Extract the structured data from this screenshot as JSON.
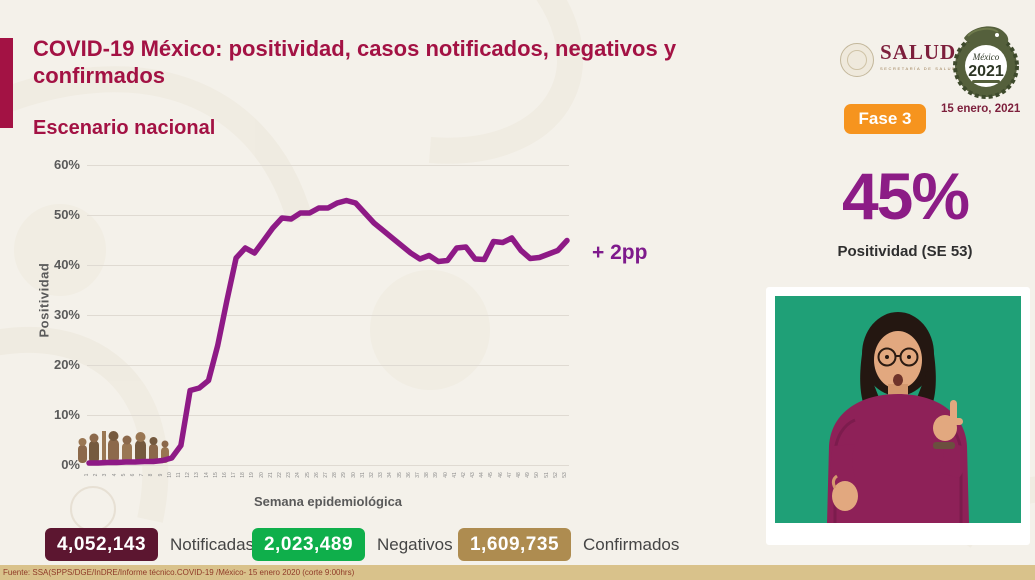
{
  "slide": {
    "title": "COVID-19 México: positividad, casos notificados, negativos y confirmados",
    "subtitle": "Escenario nacional",
    "source": "Fuente: SSA(SPPS/DGE/InDRE/Informe técnico.COVID-19 /México- 15 enero 2020 (corte 9:00hrs)"
  },
  "header": {
    "salud_name": "SALUD",
    "salud_sub": "SECRETARÍA DE SALUD",
    "logo_2021_script": "México",
    "logo_2021_year": "2021",
    "phase_badge": "Fase 3",
    "date": "15 enero, 2021"
  },
  "icons": {
    "salud_seal": "government-seal (circular emblem)",
    "logo_2021": "quetzalcoatl-snake-ring around 2021",
    "interpreter": "sign-language-interpreter video on green background"
  },
  "kpi": {
    "value": "45%",
    "label": "Positividad (SE 53)",
    "annotation": "+ 2pp"
  },
  "chart_data": {
    "type": "line",
    "title": "",
    "xlabel": "Semana epidemiológica",
    "ylabel": "Positividad",
    "ylim": [
      0,
      60
    ],
    "grid": true,
    "legend": "none",
    "line_color": "#8e1a86",
    "y_ticks": [
      "0%",
      "10%",
      "20%",
      "30%",
      "40%",
      "50%",
      "60%"
    ],
    "x": [
      1,
      2,
      3,
      4,
      5,
      6,
      7,
      8,
      9,
      10,
      11,
      12,
      13,
      14,
      15,
      16,
      17,
      18,
      19,
      20,
      21,
      22,
      23,
      24,
      25,
      26,
      27,
      28,
      29,
      30,
      31,
      32,
      33,
      34,
      35,
      36,
      37,
      38,
      39,
      40,
      41,
      42,
      43,
      44,
      45,
      46,
      47,
      48,
      49,
      50,
      51,
      52,
      53
    ],
    "series": [
      {
        "name": "Positividad",
        "values": [
          0.5,
          0.5,
          0.6,
          0.6,
          0.7,
          0.7,
          0.8,
          0.8,
          1.0,
          1.5,
          4,
          15,
          15.5,
          17,
          24,
          33,
          41.5,
          43.5,
          42.5,
          45,
          47.5,
          49.5,
          49.3,
          50.5,
          50.5,
          51.5,
          51.5,
          52.5,
          53,
          52.5,
          50.5,
          48.5,
          47,
          45.5,
          44,
          42.5,
          41.3,
          42,
          40.8,
          41,
          43.5,
          43.7,
          41.3,
          41.2,
          44.8,
          44.6,
          45.5,
          43,
          41.4,
          41.6,
          42.3,
          43,
          45
        ]
      }
    ]
  },
  "badges": [
    {
      "value": "4,052,143",
      "label": "Notificadas",
      "color": "#5c1630"
    },
    {
      "value": "2,023,489",
      "label": "Negativos",
      "color": "#0faf4b"
    },
    {
      "value": "1,609,735",
      "label": "Confirmados",
      "color": "#ae8c50"
    }
  ]
}
